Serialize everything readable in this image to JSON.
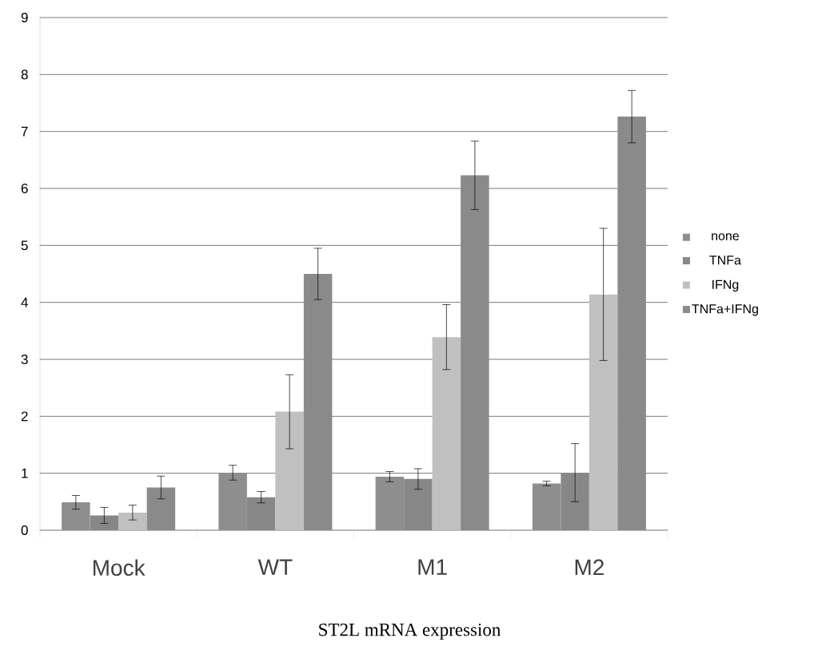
{
  "chart_data": {
    "type": "bar",
    "title": "ST2L mRNA expression",
    "categories": [
      "Mock",
      "WT",
      "M1",
      "M2"
    ],
    "series": [
      {
        "name": "none",
        "color": "#8e8e8e",
        "values": [
          0.49,
          1.01,
          0.94,
          0.82
        ],
        "errors": [
          0.12,
          0.13,
          0.09,
          0.04
        ]
      },
      {
        "name": "TNFa",
        "color": "#878787",
        "values": [
          0.26,
          0.58,
          0.9,
          1.01
        ],
        "errors": [
          0.14,
          0.1,
          0.18,
          0.51
        ]
      },
      {
        "name": "IFNg",
        "color": "#c0c0c0",
        "values": [
          0.31,
          2.08,
          3.39,
          4.14
        ],
        "errors": [
          0.13,
          0.65,
          0.57,
          1.16
        ]
      },
      {
        "name": "TNFa+IFNg",
        "color": "#8a8a8a",
        "values": [
          0.75,
          4.5,
          6.23,
          7.26
        ],
        "errors": [
          0.2,
          0.45,
          0.6,
          0.46
        ]
      }
    ],
    "ylim": [
      0,
      9
    ],
    "yticks": [
      0,
      1,
      2,
      3,
      4,
      5,
      6,
      7,
      8,
      9
    ],
    "grid": "y",
    "legend": "right"
  }
}
